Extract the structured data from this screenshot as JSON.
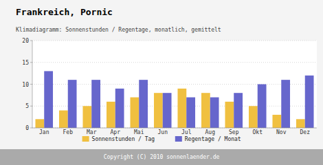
{
  "chart_data": {
    "type": "bar",
    "title": "Frankreich, Pornic",
    "subtitle": "Klimadiagramm: Sonnenstunden / Regentage, monatlich, gemittelt",
    "copyright": "Copyright (C) 2010 sonnenlaender.de",
    "categories": [
      "Jan",
      "Feb",
      "Mar",
      "Apr",
      "Mai",
      "Jun",
      "Jul",
      "Aug",
      "Sep",
      "Okt",
      "Nov",
      "Dez"
    ],
    "series": [
      {
        "name": "Sonnenstunden / Tag",
        "color": "#f0c040",
        "values": [
          2,
          4,
          5,
          6,
          7,
          8,
          9,
          8,
          6,
          5,
          3,
          2
        ]
      },
      {
        "name": "Regentage / Monat",
        "color": "#6666cc",
        "values": [
          13,
          11,
          11,
          9,
          11,
          8,
          7,
          7,
          8,
          10,
          11,
          12
        ]
      }
    ],
    "ylim": [
      0,
      20
    ],
    "yticks": [
      0,
      5,
      10,
      15,
      20
    ],
    "grid": true,
    "legend": "bottom"
  }
}
